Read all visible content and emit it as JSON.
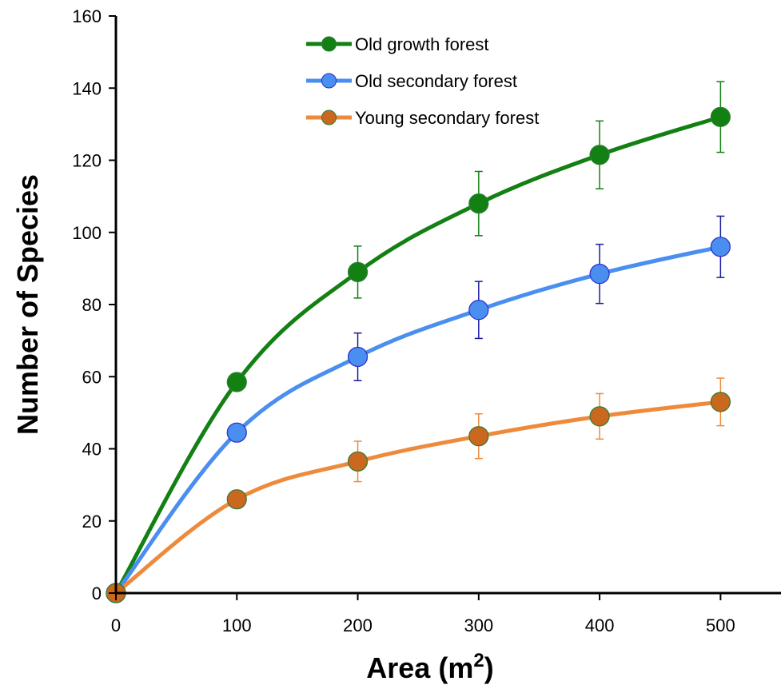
{
  "chart_data": {
    "type": "line",
    "title": "",
    "xlabel": "Area (m²)",
    "xlabel_parts": {
      "main": "Area (m",
      "sup": "2",
      "close": ")"
    },
    "ylabel": "Number of Species",
    "xlim": [
      0,
      550
    ],
    "ylim": [
      0,
      160
    ],
    "xticks": [
      0,
      100,
      200,
      300,
      400,
      500
    ],
    "yticks": [
      0,
      20,
      40,
      60,
      80,
      100,
      120,
      140,
      160
    ],
    "grid": false,
    "legend_position": "top-center",
    "x": [
      0,
      100,
      200,
      300,
      400,
      500
    ],
    "series": [
      {
        "name": "Old growth forest",
        "color": "#138013",
        "values": [
          0,
          58.5,
          89,
          108,
          121.5,
          132
        ],
        "errors": [
          0,
          0,
          7.2,
          8.9,
          9.4,
          9.8
        ]
      },
      {
        "name": "Old secondary forest",
        "color": "#4a8ef0",
        "errors_color": "#1a1aa0",
        "values": [
          0,
          44.5,
          65.5,
          78.5,
          88.5,
          96
        ],
        "errors": [
          0,
          0,
          6.6,
          7.9,
          8.2,
          8.5
        ]
      },
      {
        "name": "Young secondary forest",
        "color": "#ee8a3c",
        "marker_color": "#c9681e",
        "values": [
          0,
          26,
          36.5,
          43.5,
          49,
          53
        ],
        "errors": [
          0,
          0,
          5.6,
          6.2,
          6.3,
          6.6
        ]
      }
    ]
  }
}
